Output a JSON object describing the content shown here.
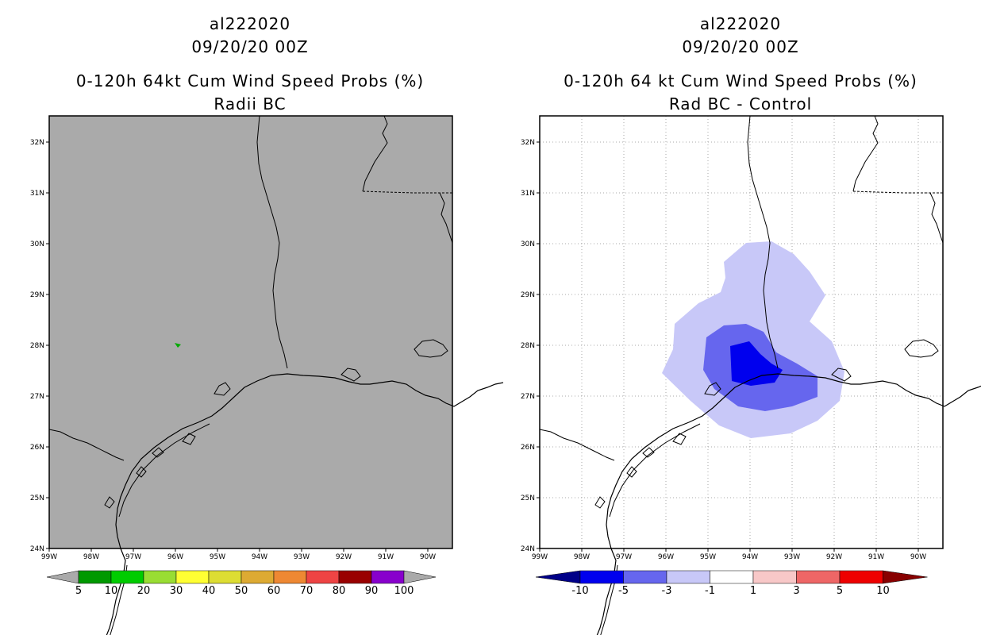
{
  "left_panel": {
    "storm_id": "al222020",
    "datetime": "09/20/20 00Z",
    "product": "0-120h 64kt Cum Wind Speed Probs (%)",
    "subtitle": "Radii BC",
    "colorbar": {
      "labels": [
        "5",
        "10",
        "20",
        "30",
        "40",
        "50",
        "60",
        "70",
        "80",
        "90",
        "100"
      ],
      "colors": [
        "#009900",
        "#00cc00",
        "#99dd33",
        "#ffff33",
        "#dddd33",
        "#ddaa33",
        "#ee8833",
        "#ee4444",
        "#990000",
        "#8800cc"
      ],
      "arrow_color": "#aaaaaa"
    },
    "background_color": "#aaaaaa"
  },
  "right_panel": {
    "storm_id": "al222020",
    "datetime": "09/20/20 00Z",
    "product": "0-120h 64 kt Cum Wind Speed Probs (%)",
    "subtitle": "Rad BC - Control",
    "colorbar": {
      "labels": [
        "-10",
        "-5",
        "-3",
        "-1",
        "1",
        "3",
        "5",
        "10"
      ],
      "colors": [
        "#0000ee",
        "#6666ee",
        "#c8c8f8",
        "#ffffff",
        "#f8c8c8",
        "#ee6666",
        "#ee0000"
      ],
      "arrow_left": "#000088",
      "arrow_right": "#880000"
    }
  },
  "axes": {
    "lat_labels": [
      "24N",
      "25N",
      "26N",
      "27N",
      "28N",
      "29N",
      "30N",
      "31N",
      "32N"
    ],
    "lon_labels": [
      "99W",
      "98W",
      "97W",
      "96W",
      "95W",
      "94W",
      "93W",
      "92W",
      "91W",
      "90W"
    ]
  }
}
